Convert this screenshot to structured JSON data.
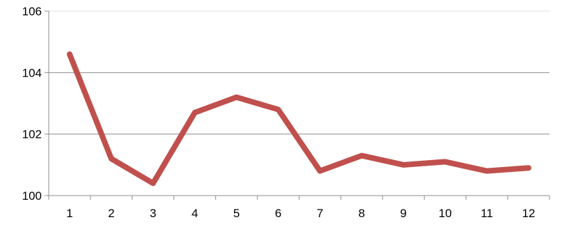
{
  "chart_data": {
    "type": "line",
    "title": "",
    "xlabel": "",
    "ylabel": "",
    "categories": [
      "1",
      "2",
      "3",
      "4",
      "5",
      "6",
      "7",
      "8",
      "9",
      "10",
      "11",
      "12"
    ],
    "series": [
      {
        "values": [
          104.6,
          101.2,
          100.4,
          102.7,
          103.2,
          102.8,
          100.8,
          101.3,
          101.0,
          101.1,
          100.8,
          100.9
        ],
        "color": "#C0504D"
      }
    ],
    "ylim": [
      100,
      106
    ],
    "y_ticks": [
      "100",
      "102",
      "104",
      "106"
    ],
    "grid": true,
    "legend": "none"
  }
}
